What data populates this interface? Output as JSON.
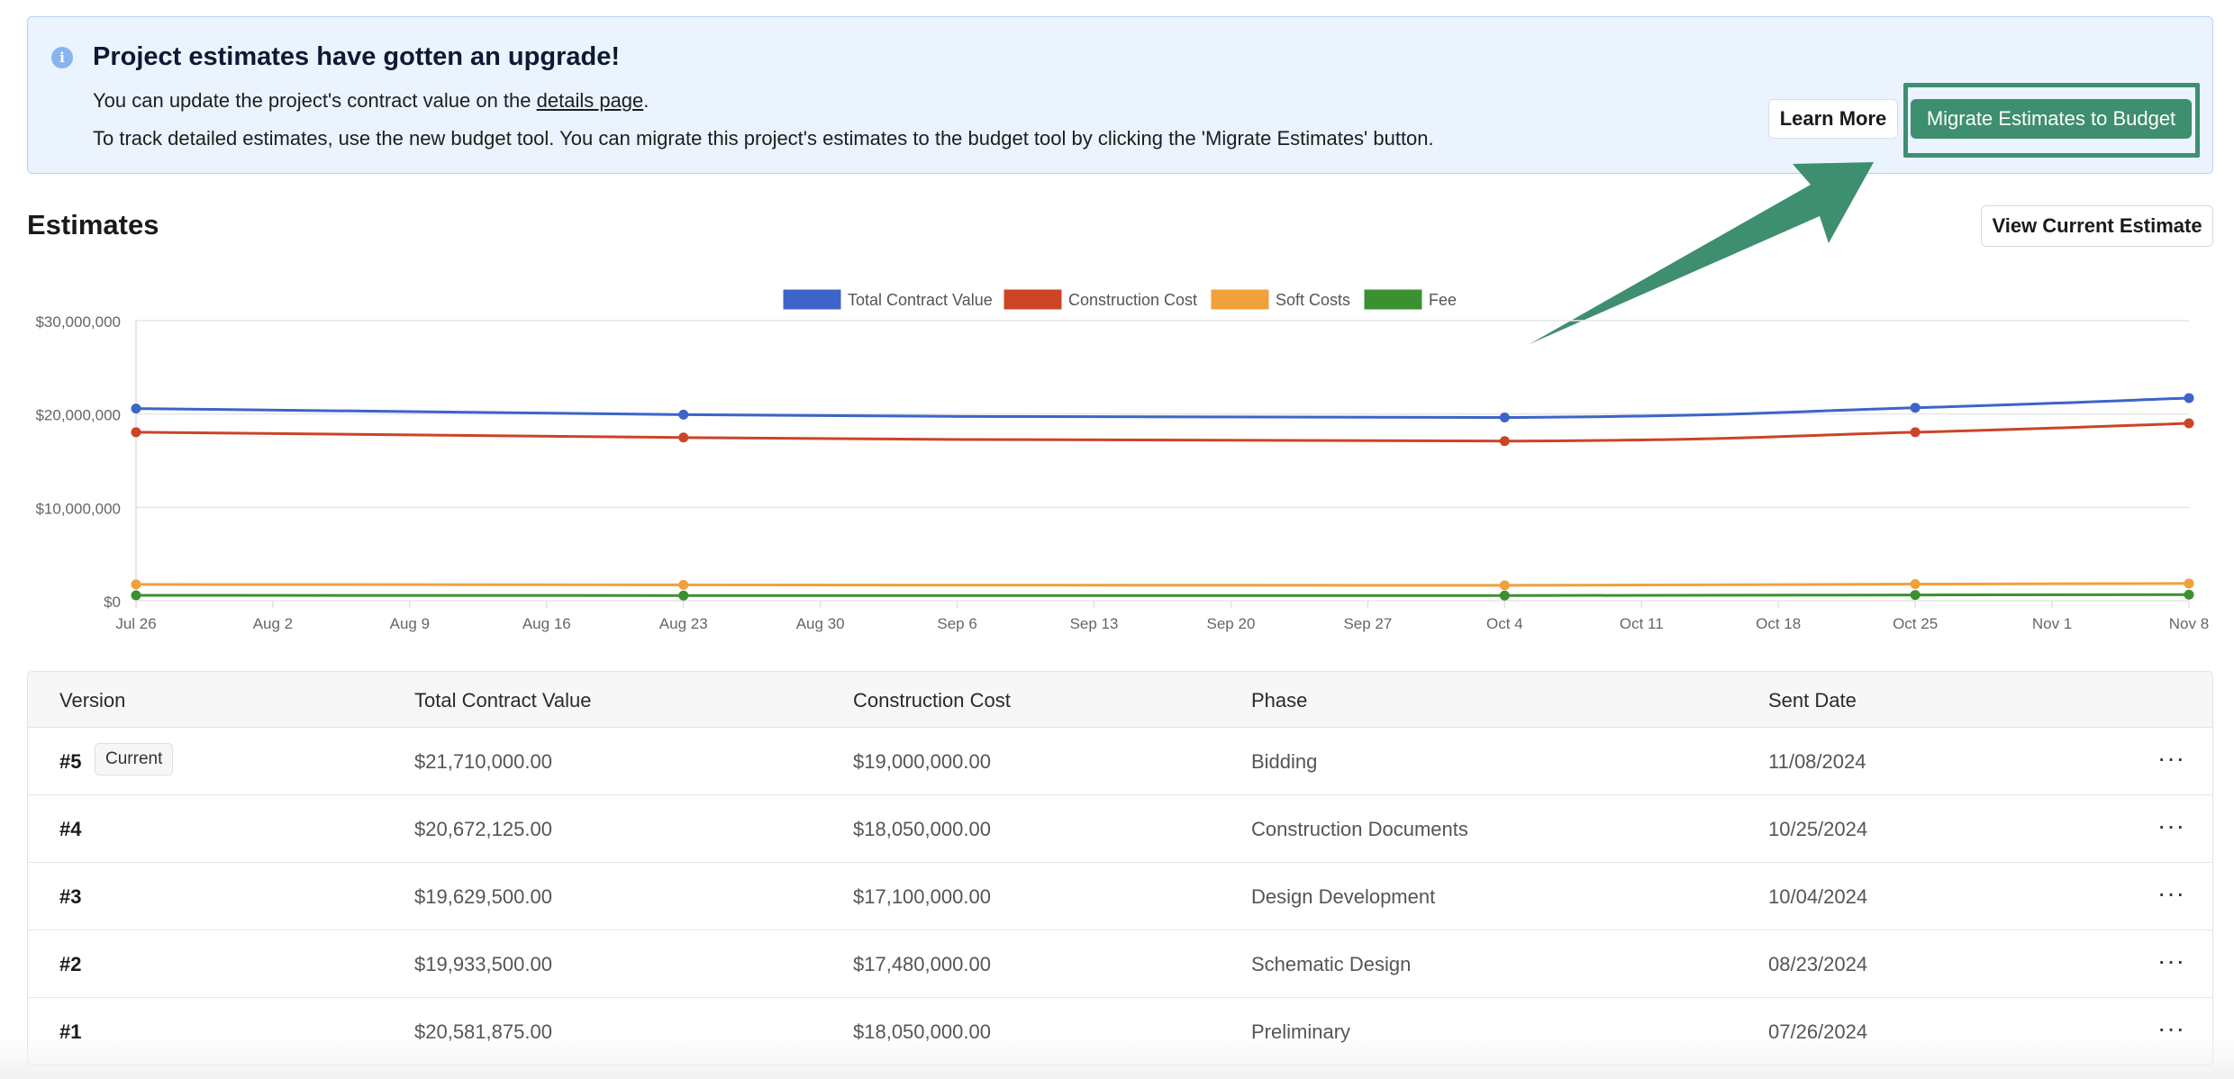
{
  "banner": {
    "icon": "info-icon",
    "title": "Project estimates have gotten an upgrade!",
    "line1_prefix": "You can update the project's contract value on the ",
    "line1_link": "details page",
    "line1_suffix": ".",
    "line2": "To track detailed estimates, use the new budget tool. You can migrate this project's estimates to the budget tool by clicking the 'Migrate Estimates' button.",
    "learn_more_label": "Learn More",
    "migrate_label": "Migrate Estimates to Budget",
    "highlight_color": "#3f8f73"
  },
  "estimates": {
    "title": "Estimates",
    "view_current_label": "View Current Estimate"
  },
  "chart_data": {
    "type": "line",
    "title": "",
    "xlabel": "",
    "ylabel": "",
    "ylim": [
      0,
      30000000
    ],
    "yticks": [
      "$0",
      "$10,000,000",
      "$20,000,000",
      "$30,000,000"
    ],
    "ytick_values": [
      0,
      10000000,
      20000000,
      30000000
    ],
    "xticks": [
      "Jul 26",
      "Aug 2",
      "Aug 9",
      "Aug 16",
      "Aug 23",
      "Aug 30",
      "Sep 6",
      "Sep 13",
      "Sep 20",
      "Sep 27",
      "Oct 4",
      "Oct 11",
      "Oct 18",
      "Oct 25",
      "Nov 1",
      "Nov 8"
    ],
    "x": [
      "Jul 26",
      "Aug 23",
      "Oct 4",
      "Oct 25",
      "Nov 8"
    ],
    "x_days": [
      0,
      28,
      70,
      91,
      105
    ],
    "legend_position": "top-center",
    "grid": true,
    "series": [
      {
        "name": "Total Contract Value",
        "color": "#3d64c8",
        "values": [
          20581875,
          19933500,
          19629500,
          20672125,
          21710000
        ]
      },
      {
        "name": "Construction Cost",
        "color": "#cc4426",
        "values": [
          18050000,
          17480000,
          17100000,
          18050000,
          19000000
        ]
      },
      {
        "name": "Soft Costs",
        "color": "#f0a13c",
        "values": [
          1750000,
          1700000,
          1650000,
          1780000,
          1850000
        ]
      },
      {
        "name": "Fee",
        "color": "#3b9130",
        "values": [
          580000,
          560000,
          560000,
          620000,
          650000
        ]
      }
    ]
  },
  "table": {
    "headers": [
      "Version",
      "Total Contract Value",
      "Construction Cost",
      "Phase",
      "Sent Date"
    ],
    "current_badge": "Current",
    "more_icon": "more-horizontal-icon",
    "rows": [
      {
        "version": "#5",
        "tcv": "$21,710,000.00",
        "cc": "$19,000,000.00",
        "phase": "Bidding",
        "date": "11/08/2024",
        "more": "···"
      },
      {
        "version": "#4",
        "tcv": "$20,672,125.00",
        "cc": "$18,050,000.00",
        "phase": "Construction Documents",
        "date": "10/25/2024",
        "more": "···"
      },
      {
        "version": "#3",
        "tcv": "$19,629,500.00",
        "cc": "$17,100,000.00",
        "phase": "Design Development",
        "date": "10/04/2024",
        "more": "···"
      },
      {
        "version": "#2",
        "tcv": "$19,933,500.00",
        "cc": "$17,480,000.00",
        "phase": "Schematic Design",
        "date": "08/23/2024",
        "more": "···"
      },
      {
        "version": "#1",
        "tcv": "$20,581,875.00",
        "cc": "$18,050,000.00",
        "phase": "Preliminary",
        "date": "07/26/2024",
        "more": "···"
      }
    ]
  }
}
